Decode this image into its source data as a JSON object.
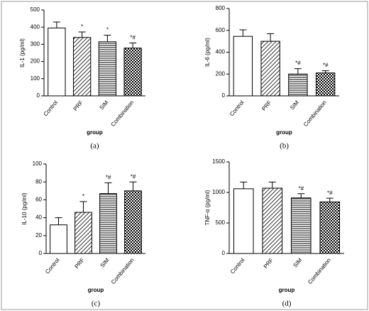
{
  "chart_data": [
    {
      "type": "bar",
      "panel_label": "(a)",
      "y_label": "IL-1 (pg/ml)",
      "x_label": "group",
      "categories": [
        "Control",
        "PRF",
        "SIM",
        "Combination"
      ],
      "values": [
        395,
        340,
        315,
        278
      ],
      "errors": [
        35,
        32,
        38,
        30
      ],
      "annotations": [
        null,
        "*",
        "*",
        "*#"
      ],
      "patterns": [
        "none",
        "diagonal",
        "horizontal",
        "checker"
      ],
      "ylim": [
        0,
        500
      ],
      "yticks": [
        0,
        100,
        200,
        300,
        400,
        500
      ]
    },
    {
      "type": "bar",
      "panel_label": "(b)",
      "y_label": "IL-6 (pg/ml)",
      "x_label": "group",
      "categories": [
        "Control",
        "PRF",
        "SIM",
        "Combination"
      ],
      "values": [
        545,
        500,
        200,
        210
      ],
      "errors": [
        60,
        70,
        50,
        20
      ],
      "annotations": [
        null,
        null,
        "*#",
        "*#"
      ],
      "patterns": [
        "none",
        "diagonal",
        "horizontal",
        "checker"
      ],
      "ylim": [
        0,
        800
      ],
      "yticks": [
        0,
        200,
        400,
        600,
        800
      ]
    },
    {
      "type": "bar",
      "panel_label": "(c)",
      "y_label": "IL-10 (pg/ml)",
      "x_label": "group",
      "categories": [
        "Control",
        "PRF",
        "SIM",
        "Combination"
      ],
      "values": [
        32,
        46,
        67,
        70
      ],
      "errors": [
        8,
        12,
        12,
        10
      ],
      "annotations": [
        null,
        "*",
        "*#",
        "*#"
      ],
      "patterns": [
        "none",
        "diagonal",
        "horizontal",
        "checker"
      ],
      "ylim": [
        0,
        100
      ],
      "yticks": [
        0,
        20,
        40,
        60,
        80,
        100
      ]
    },
    {
      "type": "bar",
      "panel_label": "(d)",
      "y_label": "TNF-α (pg/ml)",
      "x_label": "group",
      "categories": [
        "Control",
        "PRF",
        "SIM",
        "Combination"
      ],
      "values": [
        1060,
        1070,
        910,
        845
      ],
      "errors": [
        110,
        100,
        70,
        60
      ],
      "annotations": [
        null,
        null,
        "*#",
        "*#"
      ],
      "patterns": [
        "none",
        "diagonal",
        "horizontal",
        "checker"
      ],
      "ylim": [
        0,
        1500
      ],
      "yticks": [
        0,
        500,
        1000,
        1500
      ]
    }
  ]
}
